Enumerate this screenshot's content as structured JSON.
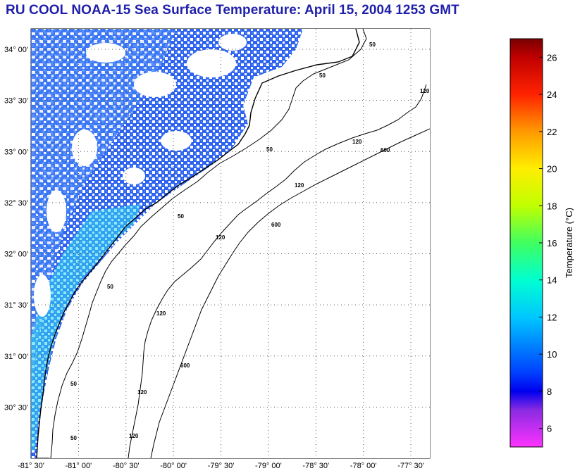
{
  "title": "RU COOL  NOAA-15  Sea Surface Temperature:  April 15, 2004 1253 GMT",
  "map": {
    "lat_labels": [
      "34° 00'",
      "33° 30'",
      "33° 00'",
      "32° 30'",
      "32° 00'",
      "31° 30'",
      "31° 00'",
      "30° 30'"
    ],
    "lon_labels": [
      "-81° 30'",
      "-81° 00'",
      "-80° 30'",
      "-80° 00'",
      "-79° 30'",
      "-79° 00'",
      "-78° 30'",
      "-78° 00'",
      "-77° 30'"
    ],
    "lat_range": [
      30.0,
      34.2
    ],
    "lon_range": [
      -81.5,
      -77.3
    ],
    "grid": "dotted",
    "contour_labels": [
      "50",
      "120",
      "600"
    ],
    "colors": {
      "land_sst_cold": "#1a55ee",
      "ocean_background": "#ffffff",
      "contour_line": "#000000"
    }
  },
  "colorbar": {
    "title": "Temperature (°C)",
    "ticks": [
      "26",
      "24",
      "22",
      "20",
      "18",
      "16",
      "14",
      "12",
      "10",
      "8",
      "6"
    ],
    "range": [
      5,
      27
    ]
  }
}
